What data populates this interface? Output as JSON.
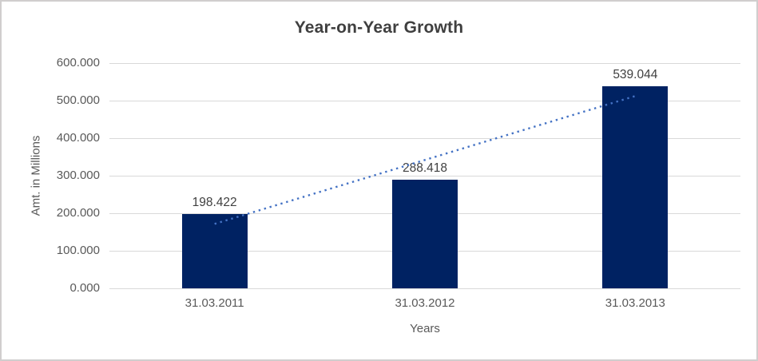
{
  "chart_data": {
    "type": "bar",
    "title": "Year-on-Year Growth",
    "xlabel": "Years",
    "ylabel": "Amt. in Millions",
    "categories": [
      "31.03.2011",
      "31.03.2012",
      "31.03.2013"
    ],
    "values": [
      198.422,
      288.418,
      539.044
    ],
    "data_labels": [
      "198.422",
      "288.418",
      "539.044"
    ],
    "ylim": [
      0,
      600
    ],
    "ytick_interval": 100,
    "ytick_labels": [
      "0.000",
      "100.000",
      "200.000",
      "300.000",
      "400.000",
      "500.000",
      "600.000"
    ],
    "grid": true,
    "legend_position": "none",
    "trendline": {
      "type": "linear",
      "style": "dotted",
      "color": "#4472c4"
    },
    "colors": {
      "bar": "#002262",
      "gridline": "#d9d9d9",
      "title_text": "#3f3f3f",
      "data_label_text": "#404040",
      "tick_text": "#595959",
      "frame_border": "#d0cece",
      "background": "#ffffff"
    }
  }
}
